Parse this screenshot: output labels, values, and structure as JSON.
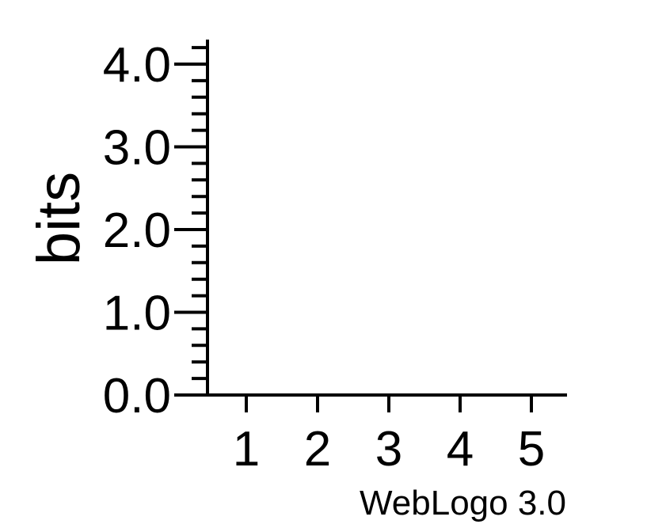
{
  "chart_data": {
    "type": "sequence-logo",
    "title": "",
    "xlabel": "",
    "ylabel": "bits",
    "x": [
      1,
      2,
      3,
      4,
      5
    ],
    "y_ticks": [
      "0.0",
      "1.0",
      "2.0",
      "3.0",
      "4.0"
    ],
    "ylim": [
      0,
      4.3
    ],
    "xlim": [
      0.5,
      5.5
    ],
    "y_minor_step": 0.2,
    "grid": false,
    "legend": "none",
    "series": [],
    "footer": "WebLogo 3.0",
    "colors": {
      "axis": "#000000",
      "background": "#ffffff"
    }
  }
}
